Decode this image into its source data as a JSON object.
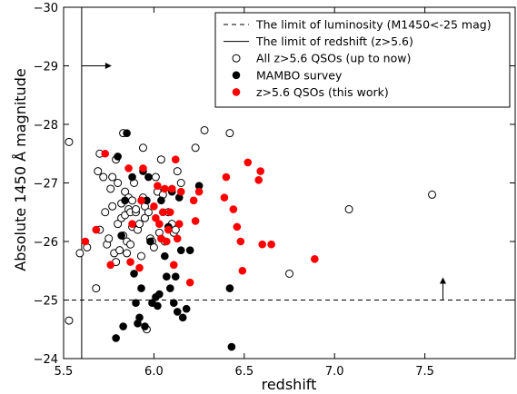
{
  "chart_data": {
    "type": "scatter",
    "xlabel": "redshift",
    "ylabel": "Absolute 1450 Å magnitude",
    "xlim": [
      5.5,
      8.0
    ],
    "ylim": [
      -24,
      -30
    ],
    "y_inverted": true,
    "xticks": [
      5.5,
      6.0,
      6.5,
      7.0,
      7.5
    ],
    "xtick_labels": [
      "5.5",
      "6.0",
      "6.5",
      "7.0",
      "7.5"
    ],
    "yticks": [
      -24,
      -25,
      -26,
      -27,
      -28,
      -29,
      -30
    ],
    "ytick_labels": [
      "−24",
      "−25",
      "−26",
      "−27",
      "−28",
      "−29",
      "−30"
    ],
    "grid": false,
    "legend_position": "top-right",
    "limits": {
      "luminosity": {
        "label": "The limit of luminosity (M1450<-25 mag)",
        "y": -25,
        "style": "dashed",
        "arrow_x": 7.6,
        "arrow_dir": "up"
      },
      "redshift": {
        "label": "The limit of redshift (z>5.6)",
        "x": 5.6,
        "style": "solid",
        "arrow_y": -29,
        "arrow_dir": "right"
      }
    },
    "series": [
      {
        "name": "All z>5.6 QSOs (up to now)",
        "marker": "open-circle",
        "color": "#000000",
        "points": [
          [
            5.53,
            -27.7
          ],
          [
            5.53,
            -24.65
          ],
          [
            5.59,
            -25.8
          ],
          [
            5.63,
            -25.9
          ],
          [
            5.68,
            -25.2
          ],
          [
            5.69,
            -27.2
          ],
          [
            5.7,
            -27.5
          ],
          [
            5.7,
            -26.2
          ],
          [
            5.72,
            -27.1
          ],
          [
            5.73,
            -26.5
          ],
          [
            5.74,
            -25.95
          ],
          [
            5.75,
            -26.05
          ],
          [
            5.76,
            -26.9
          ],
          [
            5.77,
            -27.1
          ],
          [
            5.77,
            -26.6
          ],
          [
            5.78,
            -25.8
          ],
          [
            5.79,
            -27.4
          ],
          [
            5.79,
            -25.65
          ],
          [
            5.8,
            -27.0
          ],
          [
            5.8,
            -26.3
          ],
          [
            5.81,
            -25.85
          ],
          [
            5.82,
            -26.4
          ],
          [
            5.82,
            -26.65
          ],
          [
            5.83,
            -27.85
          ],
          [
            5.83,
            -26.1
          ],
          [
            5.84,
            -26.85
          ],
          [
            5.84,
            -26.45
          ],
          [
            5.85,
            -26.0
          ],
          [
            5.85,
            -25.8
          ],
          [
            5.86,
            -26.55
          ],
          [
            5.86,
            -26.75
          ],
          [
            5.87,
            -26.5
          ],
          [
            5.87,
            -25.95
          ],
          [
            5.88,
            -26.25
          ],
          [
            5.88,
            -26.7
          ],
          [
            5.89,
            -27.0
          ],
          [
            5.9,
            -26.5
          ],
          [
            5.9,
            -26.55
          ],
          [
            5.91,
            -26.2
          ],
          [
            5.92,
            -26.3
          ],
          [
            5.93,
            -25.75
          ],
          [
            5.94,
            -27.6
          ],
          [
            5.94,
            -26.75
          ],
          [
            5.95,
            -26.4
          ],
          [
            5.95,
            -26.6
          ],
          [
            5.96,
            -24.5
          ],
          [
            5.97,
            -26.5
          ],
          [
            5.98,
            -26.05
          ],
          [
            5.99,
            -26.0
          ],
          [
            6.0,
            -25.9
          ],
          [
            6.01,
            -27.1
          ],
          [
            6.02,
            -26.85
          ],
          [
            6.03,
            -26.15
          ],
          [
            6.04,
            -27.4
          ],
          [
            6.05,
            -26.8
          ],
          [
            6.06,
            -26.0
          ],
          [
            6.08,
            -26.5
          ],
          [
            6.1,
            -26.3
          ],
          [
            6.11,
            -26.15
          ],
          [
            6.12,
            -26.2
          ],
          [
            6.13,
            -27.2
          ],
          [
            6.15,
            -27.0
          ],
          [
            6.23,
            -27.6
          ],
          [
            6.28,
            -27.9
          ],
          [
            6.42,
            -27.85
          ],
          [
            6.75,
            -25.45
          ],
          [
            7.08,
            -26.55
          ],
          [
            7.54,
            -26.8
          ]
        ]
      },
      {
        "name": "MAMBO survey",
        "marker": "filled-circle",
        "color": "#000000",
        "points": [
          [
            5.79,
            -24.35
          ],
          [
            5.8,
            -27.45
          ],
          [
            5.82,
            -26.1
          ],
          [
            5.83,
            -24.55
          ],
          [
            5.84,
            -26.7
          ],
          [
            5.85,
            -27.85
          ],
          [
            5.88,
            -27.1
          ],
          [
            5.89,
            -25.45
          ],
          [
            5.9,
            -24.95
          ],
          [
            5.91,
            -24.6
          ],
          [
            5.92,
            -24.7
          ],
          [
            5.93,
            -25.2
          ],
          [
            5.94,
            -27.2
          ],
          [
            5.95,
            -24.55
          ],
          [
            5.96,
            -26.7
          ],
          [
            5.97,
            -27.1
          ],
          [
            5.98,
            -26.0
          ],
          [
            5.99,
            -24.95
          ],
          [
            6.01,
            -25.05
          ],
          [
            6.02,
            -24.9
          ],
          [
            6.03,
            -25.1
          ],
          [
            6.04,
            -26.7
          ],
          [
            6.05,
            -26.5
          ],
          [
            6.06,
            -25.75
          ],
          [
            6.07,
            -25.4
          ],
          [
            6.08,
            -26.25
          ],
          [
            6.09,
            -25.2
          ],
          [
            6.1,
            -26.85
          ],
          [
            6.11,
            -24.95
          ],
          [
            6.12,
            -25.4
          ],
          [
            6.13,
            -24.8
          ],
          [
            6.14,
            -26.75
          ],
          [
            6.15,
            -25.85
          ],
          [
            6.16,
            -24.7
          ],
          [
            6.18,
            -24.85
          ],
          [
            6.2,
            -25.85
          ],
          [
            6.25,
            -26.95
          ],
          [
            6.42,
            -25.2
          ],
          [
            6.43,
            -24.2
          ]
        ]
      },
      {
        "name": "z>5.6 QSOs (this work)",
        "marker": "filled-circle",
        "color": "#ff0000",
        "points": [
          [
            5.62,
            -26.0
          ],
          [
            5.68,
            -26.2
          ],
          [
            5.73,
            -27.5
          ],
          [
            5.76,
            -25.6
          ],
          [
            5.86,
            -27.25
          ],
          [
            5.87,
            -25.65
          ],
          [
            5.88,
            -26.3
          ],
          [
            5.92,
            -25.55
          ],
          [
            5.93,
            -26.7
          ],
          [
            5.94,
            -27.25
          ],
          [
            6.0,
            -26.6
          ],
          [
            6.01,
            -26.4
          ],
          [
            6.02,
            -26.95
          ],
          [
            6.03,
            -26.3
          ],
          [
            6.04,
            -26.05
          ],
          [
            6.05,
            -26.5
          ],
          [
            6.06,
            -26.9
          ],
          [
            6.07,
            -26.0
          ],
          [
            6.08,
            -26.2
          ],
          [
            6.09,
            -26.5
          ],
          [
            6.1,
            -26.9
          ],
          [
            6.11,
            -25.6
          ],
          [
            6.12,
            -27.4
          ],
          [
            6.13,
            -26.05
          ],
          [
            6.14,
            -26.3
          ],
          [
            6.15,
            -26.85
          ],
          [
            6.2,
            -25.3
          ],
          [
            6.22,
            -26.7
          ],
          [
            6.23,
            -26.35
          ],
          [
            6.25,
            -26.85
          ],
          [
            6.39,
            -26.75
          ],
          [
            6.4,
            -27.1
          ],
          [
            6.44,
            -26.55
          ],
          [
            6.46,
            -26.25
          ],
          [
            6.48,
            -26.0
          ],
          [
            6.49,
            -25.5
          ],
          [
            6.52,
            -27.35
          ],
          [
            6.58,
            -27.05
          ],
          [
            6.59,
            -27.2
          ],
          [
            6.6,
            -25.95
          ],
          [
            6.65,
            -25.95
          ],
          [
            6.89,
            -25.7
          ]
        ]
      }
    ]
  }
}
